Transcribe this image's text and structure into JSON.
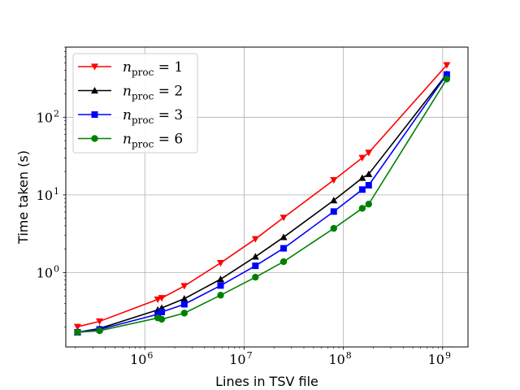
{
  "chart_data": {
    "type": "line",
    "xscale": "log",
    "yscale": "log",
    "xlabel": "Lines in TSV file",
    "ylabel": "Time taken (s)",
    "xlim": [
      160000,
      1800000000
    ],
    "ylim": [
      0.11,
      800
    ],
    "grid": true,
    "legend_position": "top-left",
    "x_ticks": [
      {
        "value": 1000000,
        "base": "10",
        "exp": "6"
      },
      {
        "value": 10000000,
        "base": "10",
        "exp": "7"
      },
      {
        "value": 100000000,
        "base": "10",
        "exp": "8"
      },
      {
        "value": 1000000000,
        "base": "10",
        "exp": "9"
      }
    ],
    "y_ticks": [
      {
        "value": 1,
        "base": "10",
        "exp": "0"
      },
      {
        "value": 10,
        "base": "10",
        "exp": "1"
      },
      {
        "value": 100,
        "base": "10",
        "exp": "2"
      }
    ],
    "x": [
      210000,
      350000,
      1350000,
      1480000,
      2500000,
      5800000,
      13000000,
      25000000,
      80000000,
      155000000,
      180000000,
      1100000000
    ],
    "series": [
      {
        "name": "n_proc = 1",
        "label_var": "n",
        "label_sub": "proc",
        "label_rest": " = 1",
        "color": "#ff0000",
        "marker": "triangle-down",
        "values": [
          0.2,
          0.235,
          0.45,
          0.47,
          0.67,
          1.33,
          2.7,
          5.1,
          15.5,
          30,
          35,
          470
        ]
      },
      {
        "name": "n_proc = 2",
        "label_var": "n",
        "label_sub": "proc",
        "label_rest": " = 2",
        "color": "#000000",
        "marker": "triangle-up",
        "values": [
          0.17,
          0.19,
          0.33,
          0.35,
          0.46,
          0.82,
          1.6,
          2.85,
          8.5,
          16.5,
          18.5,
          360
        ]
      },
      {
        "name": "n_proc = 3",
        "label_var": "n",
        "label_sub": "proc",
        "label_rest": " = 3",
        "color": "#0000ff",
        "marker": "square",
        "values": [
          0.17,
          0.185,
          0.29,
          0.31,
          0.39,
          0.68,
          1.22,
          2.05,
          6.1,
          11.7,
          13.3,
          355
        ]
      },
      {
        "name": "n_proc = 6",
        "label_var": "n",
        "label_sub": "proc",
        "label_rest": " = 6",
        "color": "#008000",
        "marker": "circle",
        "values": [
          0.17,
          0.178,
          0.26,
          0.25,
          0.3,
          0.51,
          0.87,
          1.38,
          3.7,
          6.7,
          7.6,
          310
        ]
      }
    ]
  }
}
